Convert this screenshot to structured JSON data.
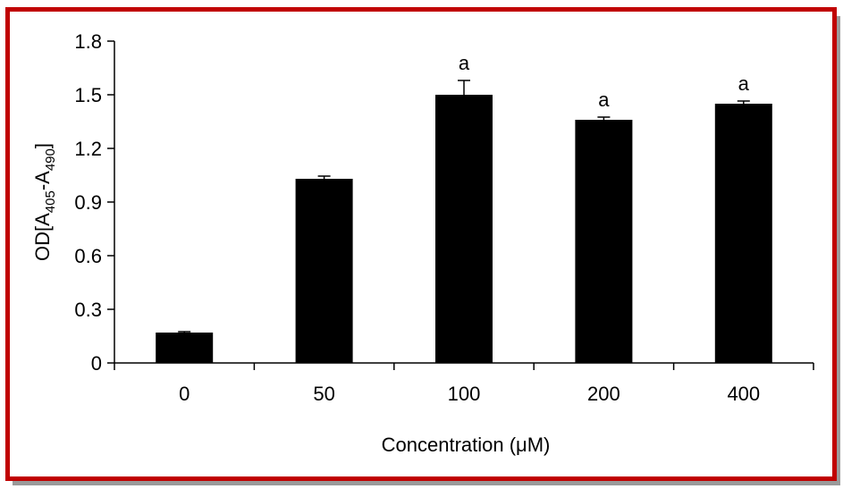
{
  "chart_data": {
    "type": "bar",
    "title": "",
    "xlabel": "Concentration (μM)",
    "ylabel": {
      "prefix": "OD[A",
      "sub1": "405",
      "middle": "-A",
      "sub2": "490",
      "suffix": "]"
    },
    "categories": [
      "0",
      "50",
      "100",
      "200",
      "400"
    ],
    "values": [
      0.17,
      1.03,
      1.5,
      1.36,
      1.45
    ],
    "errors": [
      0.005,
      0.015,
      0.08,
      0.015,
      0.015
    ],
    "annotations": [
      "",
      "",
      "a",
      "a",
      "a"
    ],
    "ylim": [
      0,
      1.8
    ],
    "yticks": [
      0,
      0.3,
      0.6,
      0.9,
      1.2,
      1.5,
      1.8
    ],
    "ytick_labels": [
      "0",
      "0.3",
      "0.6",
      "0.9",
      "1.2",
      "1.5",
      "1.8"
    ],
    "bar_color": "#000000",
    "grid": false,
    "legend": "none"
  },
  "frame": {
    "border_color": "#c00000",
    "shadow_color": "#9a9a9a"
  }
}
